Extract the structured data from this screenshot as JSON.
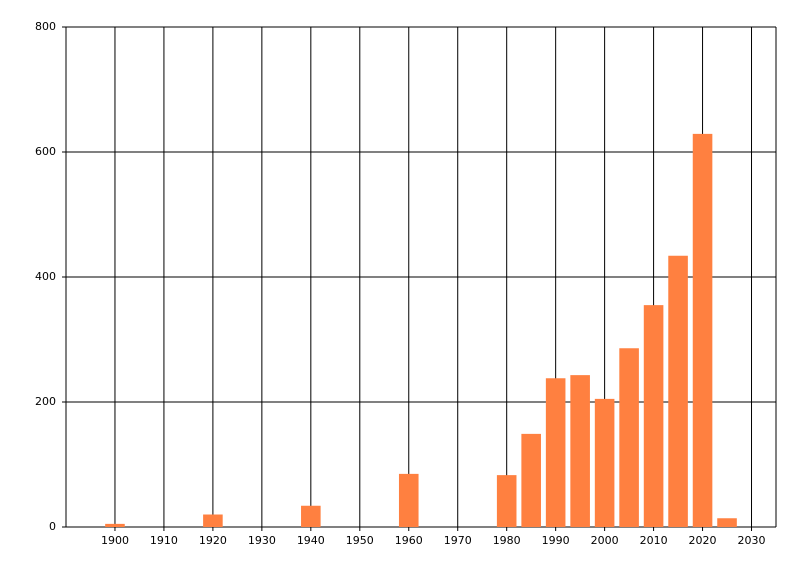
{
  "chart_data": {
    "type": "bar",
    "x": [
      1900,
      1920,
      1940,
      1960,
      1980,
      1985,
      1990,
      1995,
      2000,
      2005,
      2010,
      2015,
      2020,
      2025
    ],
    "values": [
      5,
      20,
      34,
      85,
      83,
      149,
      238,
      243,
      205,
      286,
      355,
      434,
      629,
      14
    ],
    "color": "#ff8040",
    "xlim": [
      1890,
      2035
    ],
    "xticks": [
      1900,
      1910,
      1920,
      1930,
      1940,
      1950,
      1960,
      1970,
      1980,
      1990,
      2000,
      2010,
      2020,
      2030
    ],
    "ylim": [
      0,
      800
    ],
    "yticks": [
      0,
      200,
      400,
      600,
      800
    ],
    "grid": true
  }
}
